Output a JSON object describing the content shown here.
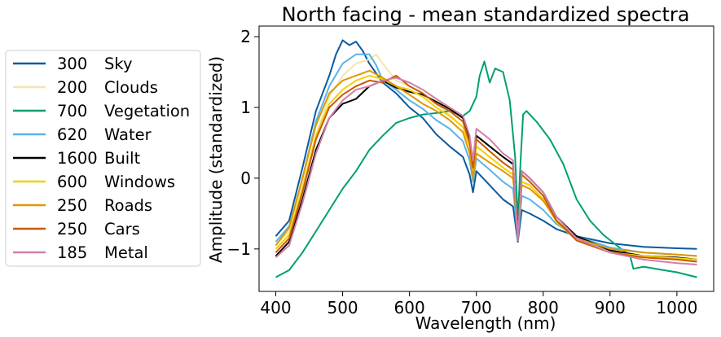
{
  "chart_data": {
    "type": "line",
    "title": "North facing - mean standardized spectra",
    "xlabel": "Wavelength (nm)",
    "ylabel": "Amplitude (standardized)",
    "xlim": [
      375,
      1055
    ],
    "ylim": [
      -1.6,
      2.15
    ],
    "xticks": [
      400,
      500,
      600,
      700,
      800,
      900,
      1000
    ],
    "yticks": [
      -1,
      0,
      1,
      2
    ],
    "ytick_labels": [
      "−1",
      "0",
      "1",
      "2"
    ],
    "grid": false,
    "legend_position": "left",
    "series": [
      {
        "count": "300",
        "name": "Sky",
        "color": "#0a5aa0",
        "points": [
          [
            400,
            -0.82
          ],
          [
            420,
            -0.6
          ],
          [
            440,
            0.15
          ],
          [
            460,
            0.95
          ],
          [
            480,
            1.45
          ],
          [
            490,
            1.75
          ],
          [
            500,
            1.95
          ],
          [
            510,
            1.88
          ],
          [
            520,
            1.93
          ],
          [
            530,
            1.8
          ],
          [
            540,
            1.62
          ],
          [
            560,
            1.35
          ],
          [
            580,
            1.2
          ],
          [
            600,
            1.0
          ],
          [
            620,
            0.85
          ],
          [
            640,
            0.62
          ],
          [
            660,
            0.45
          ],
          [
            680,
            0.3
          ],
          [
            690,
            0.05
          ],
          [
            695,
            -0.2
          ],
          [
            700,
            0.1
          ],
          [
            720,
            -0.1
          ],
          [
            740,
            -0.3
          ],
          [
            755,
            -0.4
          ],
          [
            762,
            -0.9
          ],
          [
            768,
            -0.45
          ],
          [
            780,
            -0.5
          ],
          [
            800,
            -0.6
          ],
          [
            820,
            -0.72
          ],
          [
            850,
            -0.82
          ],
          [
            900,
            -0.92
          ],
          [
            950,
            -0.97
          ],
          [
            1000,
            -0.99
          ],
          [
            1030,
            -1.0
          ]
        ]
      },
      {
        "count": "200",
        "name": "Clouds",
        "color": "#f0e6b0",
        "points": [
          [
            400,
            -0.95
          ],
          [
            420,
            -0.75
          ],
          [
            440,
            -0.1
          ],
          [
            460,
            0.6
          ],
          [
            480,
            1.15
          ],
          [
            500,
            1.45
          ],
          [
            520,
            1.62
          ],
          [
            540,
            1.68
          ],
          [
            550,
            1.75
          ],
          [
            560,
            1.62
          ],
          [
            580,
            1.38
          ],
          [
            600,
            1.3
          ],
          [
            620,
            1.2
          ],
          [
            640,
            1.05
          ],
          [
            660,
            0.9
          ],
          [
            680,
            0.72
          ],
          [
            690,
            0.45
          ],
          [
            695,
            0.1
          ],
          [
            700,
            0.45
          ],
          [
            720,
            0.3
          ],
          [
            740,
            0.15
          ],
          [
            755,
            0.05
          ],
          [
            762,
            -0.8
          ],
          [
            768,
            -0.05
          ],
          [
            780,
            -0.1
          ],
          [
            800,
            -0.3
          ],
          [
            820,
            -0.6
          ],
          [
            850,
            -0.85
          ],
          [
            900,
            -1.05
          ],
          [
            950,
            -1.12
          ],
          [
            1000,
            -1.15
          ],
          [
            1030,
            -1.15
          ]
        ]
      },
      {
        "count": "700",
        "name": "Vegetation",
        "color": "#00a070",
        "points": [
          [
            400,
            -1.4
          ],
          [
            420,
            -1.3
          ],
          [
            440,
            -1.05
          ],
          [
            460,
            -0.75
          ],
          [
            480,
            -0.45
          ],
          [
            500,
            -0.15
          ],
          [
            520,
            0.1
          ],
          [
            540,
            0.4
          ],
          [
            560,
            0.6
          ],
          [
            580,
            0.78
          ],
          [
            600,
            0.85
          ],
          [
            620,
            0.9
          ],
          [
            640,
            0.92
          ],
          [
            660,
            0.95
          ],
          [
            680,
            0.88
          ],
          [
            690,
            0.95
          ],
          [
            700,
            1.15
          ],
          [
            705,
            1.45
          ],
          [
            712,
            1.65
          ],
          [
            720,
            1.35
          ],
          [
            728,
            1.55
          ],
          [
            740,
            1.5
          ],
          [
            750,
            1.1
          ],
          [
            758,
            0.3
          ],
          [
            762,
            -0.6
          ],
          [
            766,
            0.2
          ],
          [
            770,
            0.9
          ],
          [
            775,
            0.95
          ],
          [
            790,
            0.8
          ],
          [
            810,
            0.55
          ],
          [
            830,
            0.2
          ],
          [
            850,
            -0.3
          ],
          [
            870,
            -0.6
          ],
          [
            890,
            -0.8
          ],
          [
            910,
            -0.95
          ],
          [
            930,
            -1.1
          ],
          [
            935,
            -1.28
          ],
          [
            950,
            -1.25
          ],
          [
            980,
            -1.3
          ],
          [
            1000,
            -1.33
          ],
          [
            1030,
            -1.4
          ]
        ]
      },
      {
        "count": "620",
        "name": "Water",
        "color": "#5ab4e6",
        "points": [
          [
            400,
            -0.9
          ],
          [
            420,
            -0.68
          ],
          [
            440,
            0.0
          ],
          [
            460,
            0.8
          ],
          [
            480,
            1.3
          ],
          [
            500,
            1.62
          ],
          [
            520,
            1.75
          ],
          [
            540,
            1.75
          ],
          [
            550,
            1.6
          ],
          [
            560,
            1.38
          ],
          [
            580,
            1.25
          ],
          [
            600,
            1.1
          ],
          [
            620,
            0.98
          ],
          [
            640,
            0.82
          ],
          [
            660,
            0.7
          ],
          [
            680,
            0.52
          ],
          [
            690,
            0.25
          ],
          [
            695,
            -0.05
          ],
          [
            700,
            0.28
          ],
          [
            720,
            0.12
          ],
          [
            740,
            -0.05
          ],
          [
            755,
            -0.15
          ],
          [
            762,
            -0.85
          ],
          [
            768,
            -0.25
          ],
          [
            780,
            -0.3
          ],
          [
            800,
            -0.45
          ],
          [
            820,
            -0.65
          ],
          [
            850,
            -0.82
          ],
          [
            900,
            -0.98
          ],
          [
            950,
            -1.05
          ],
          [
            1000,
            -1.08
          ],
          [
            1030,
            -1.1
          ]
        ]
      },
      {
        "count": "1600",
        "name": "Built",
        "color": "#000000",
        "points": [
          [
            400,
            -1.1
          ],
          [
            420,
            -0.9
          ],
          [
            440,
            -0.3
          ],
          [
            460,
            0.4
          ],
          [
            480,
            0.85
          ],
          [
            500,
            1.05
          ],
          [
            520,
            1.12
          ],
          [
            540,
            1.3
          ],
          [
            560,
            1.38
          ],
          [
            580,
            1.28
          ],
          [
            600,
            1.22
          ],
          [
            620,
            1.18
          ],
          [
            640,
            1.08
          ],
          [
            660,
            0.98
          ],
          [
            680,
            0.85
          ],
          [
            690,
            0.55
          ],
          [
            695,
            0.2
          ],
          [
            700,
            0.6
          ],
          [
            720,
            0.45
          ],
          [
            740,
            0.3
          ],
          [
            755,
            0.2
          ],
          [
            762,
            -0.82
          ],
          [
            768,
            0.1
          ],
          [
            780,
            0.0
          ],
          [
            800,
            -0.2
          ],
          [
            820,
            -0.55
          ],
          [
            850,
            -0.82
          ],
          [
            900,
            -1.02
          ],
          [
            950,
            -1.1
          ],
          [
            1000,
            -1.12
          ],
          [
            1030,
            -1.15
          ]
        ]
      },
      {
        "count": "600",
        "name": "Windows",
        "color": "#f5d000",
        "points": [
          [
            400,
            -1.0
          ],
          [
            420,
            -0.8
          ],
          [
            440,
            -0.15
          ],
          [
            460,
            0.6
          ],
          [
            480,
            1.05
          ],
          [
            500,
            1.25
          ],
          [
            520,
            1.38
          ],
          [
            540,
            1.45
          ],
          [
            560,
            1.4
          ],
          [
            580,
            1.3
          ],
          [
            600,
            1.25
          ],
          [
            620,
            1.15
          ],
          [
            640,
            1.0
          ],
          [
            660,
            0.88
          ],
          [
            680,
            0.72
          ],
          [
            690,
            0.45
          ],
          [
            695,
            0.1
          ],
          [
            700,
            0.45
          ],
          [
            720,
            0.3
          ],
          [
            740,
            0.15
          ],
          [
            755,
            0.05
          ],
          [
            762,
            -0.8
          ],
          [
            768,
            -0.05
          ],
          [
            780,
            -0.1
          ],
          [
            800,
            -0.3
          ],
          [
            820,
            -0.62
          ],
          [
            850,
            -0.88
          ],
          [
            900,
            -1.05
          ],
          [
            950,
            -1.1
          ],
          [
            1000,
            -1.13
          ],
          [
            1030,
            -1.15
          ]
        ]
      },
      {
        "count": "250",
        "name": "Roads",
        "color": "#e09800",
        "points": [
          [
            400,
            -0.95
          ],
          [
            420,
            -0.7
          ],
          [
            440,
            0.0
          ],
          [
            460,
            0.75
          ],
          [
            480,
            1.2
          ],
          [
            500,
            1.38
          ],
          [
            520,
            1.45
          ],
          [
            540,
            1.52
          ],
          [
            560,
            1.42
          ],
          [
            580,
            1.3
          ],
          [
            600,
            1.18
          ],
          [
            620,
            1.05
          ],
          [
            640,
            0.95
          ],
          [
            660,
            0.82
          ],
          [
            680,
            0.65
          ],
          [
            690,
            0.35
          ],
          [
            695,
            0.0
          ],
          [
            700,
            0.35
          ],
          [
            720,
            0.22
          ],
          [
            740,
            0.1
          ],
          [
            755,
            0.0
          ],
          [
            762,
            -0.78
          ],
          [
            768,
            -0.1
          ],
          [
            780,
            -0.15
          ],
          [
            800,
            -0.32
          ],
          [
            820,
            -0.6
          ],
          [
            850,
            -0.85
          ],
          [
            900,
            -1.0
          ],
          [
            950,
            -1.05
          ],
          [
            1000,
            -1.08
          ],
          [
            1030,
            -1.1
          ]
        ]
      },
      {
        "count": "250",
        "name": "Cars",
        "color": "#c85a00",
        "points": [
          [
            400,
            -1.05
          ],
          [
            420,
            -0.85
          ],
          [
            440,
            -0.2
          ],
          [
            460,
            0.55
          ],
          [
            480,
            1.0
          ],
          [
            500,
            1.18
          ],
          [
            520,
            1.3
          ],
          [
            540,
            1.38
          ],
          [
            560,
            1.35
          ],
          [
            580,
            1.45
          ],
          [
            600,
            1.3
          ],
          [
            620,
            1.2
          ],
          [
            640,
            1.05
          ],
          [
            660,
            0.95
          ],
          [
            680,
            0.8
          ],
          [
            690,
            0.5
          ],
          [
            695,
            0.15
          ],
          [
            700,
            0.55
          ],
          [
            720,
            0.38
          ],
          [
            740,
            0.22
          ],
          [
            755,
            0.12
          ],
          [
            762,
            -0.82
          ],
          [
            768,
            0.05
          ],
          [
            780,
            -0.05
          ],
          [
            800,
            -0.25
          ],
          [
            820,
            -0.6
          ],
          [
            850,
            -0.88
          ],
          [
            900,
            -1.05
          ],
          [
            950,
            -1.12
          ],
          [
            1000,
            -1.15
          ],
          [
            1030,
            -1.18
          ]
        ]
      },
      {
        "count": "185",
        "name": "Metal",
        "color": "#d080a8",
        "points": [
          [
            400,
            -1.12
          ],
          [
            420,
            -0.95
          ],
          [
            440,
            -0.35
          ],
          [
            460,
            0.35
          ],
          [
            480,
            0.85
          ],
          [
            500,
            1.1
          ],
          [
            520,
            1.25
          ],
          [
            540,
            1.3
          ],
          [
            560,
            1.38
          ],
          [
            580,
            1.42
          ],
          [
            600,
            1.35
          ],
          [
            620,
            1.25
          ],
          [
            640,
            1.12
          ],
          [
            660,
            1.0
          ],
          [
            680,
            0.88
          ],
          [
            690,
            0.6
          ],
          [
            695,
            0.25
          ],
          [
            700,
            0.7
          ],
          [
            720,
            0.55
          ],
          [
            740,
            0.35
          ],
          [
            755,
            0.25
          ],
          [
            762,
            -0.88
          ],
          [
            768,
            0.1
          ],
          [
            780,
            0.0
          ],
          [
            800,
            -0.2
          ],
          [
            820,
            -0.55
          ],
          [
            850,
            -0.85
          ],
          [
            900,
            -1.05
          ],
          [
            950,
            -1.15
          ],
          [
            1000,
            -1.2
          ],
          [
            1030,
            -1.22
          ]
        ]
      }
    ]
  }
}
